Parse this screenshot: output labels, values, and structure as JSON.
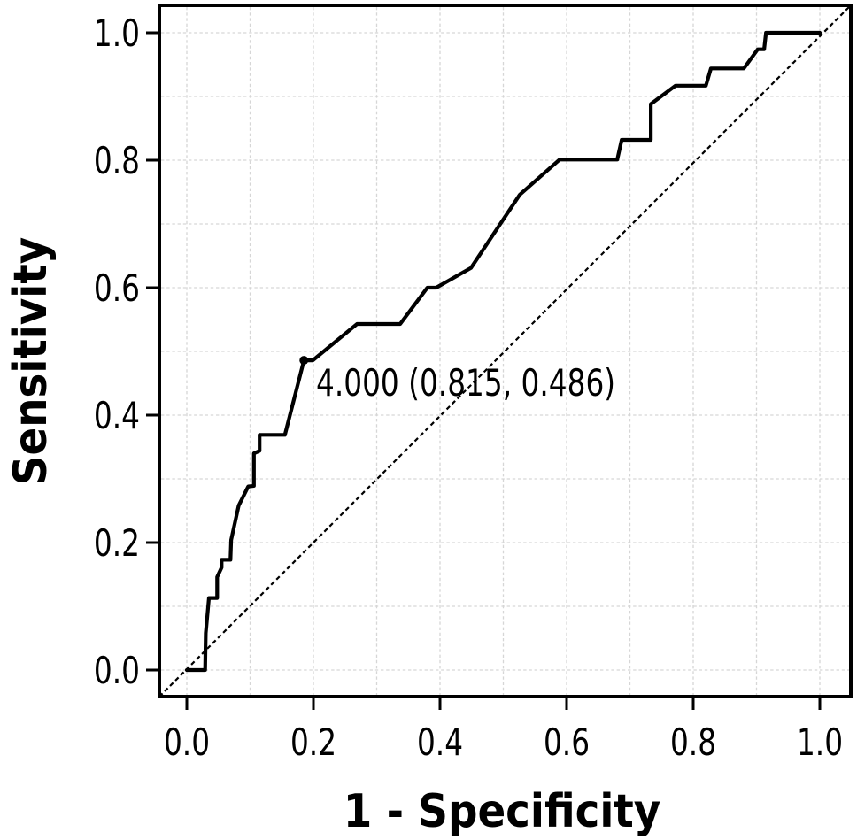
{
  "figure": {
    "background_color": "#ffffff",
    "axis_color": "#000000",
    "grid_color": "#d6d6d6",
    "curve_color": "#000000"
  },
  "chart_data": {
    "type": "line",
    "title": "",
    "xlabel": "1 - Specificity",
    "ylabel": "Sensitivity",
    "xlim": [
      -0.0434,
      1.049
    ],
    "ylim": [
      -0.0417,
      1.0431
    ],
    "grid": {
      "on": true,
      "step": 0.1,
      "style": "dotted"
    },
    "legend": {
      "shown": false
    },
    "x_ticks": [
      0.0,
      0.2,
      0.4,
      0.6,
      0.8,
      1.0
    ],
    "x_ticklabels": [
      "0.0",
      "0.2",
      "0.4",
      "0.6",
      "0.8",
      "1.0"
    ],
    "y_ticks": [
      0.0,
      0.2,
      0.4,
      0.6,
      0.8,
      1.0
    ],
    "y_ticklabels": [
      "0.0",
      "0.2",
      "0.4",
      "0.6",
      "0.8",
      "1.0"
    ],
    "series": [
      {
        "name": "ROC curve",
        "style": "solid",
        "color": "#000000",
        "points": [
          [
            0.0,
            0.0
          ],
          [
            0.029,
            0.0
          ],
          [
            0.03,
            0.058
          ],
          [
            0.035,
            0.113
          ],
          [
            0.048,
            0.113
          ],
          [
            0.048,
            0.146
          ],
          [
            0.055,
            0.161
          ],
          [
            0.055,
            0.173
          ],
          [
            0.069,
            0.173
          ],
          [
            0.07,
            0.204
          ],
          [
            0.082,
            0.258
          ],
          [
            0.097,
            0.288
          ],
          [
            0.106,
            0.289
          ],
          [
            0.106,
            0.34
          ],
          [
            0.115,
            0.344
          ],
          [
            0.115,
            0.369
          ],
          [
            0.155,
            0.369
          ],
          [
            0.185,
            0.486
          ],
          [
            0.199,
            0.486
          ],
          [
            0.269,
            0.543
          ],
          [
            0.337,
            0.543
          ],
          [
            0.38,
            0.6
          ],
          [
            0.394,
            0.6
          ],
          [
            0.449,
            0.631
          ],
          [
            0.526,
            0.746
          ],
          [
            0.589,
            0.801
          ],
          [
            0.68,
            0.801
          ],
          [
            0.687,
            0.832
          ],
          [
            0.733,
            0.832
          ],
          [
            0.733,
            0.888
          ],
          [
            0.772,
            0.917
          ],
          [
            0.82,
            0.917
          ],
          [
            0.828,
            0.944
          ],
          [
            0.88,
            0.944
          ],
          [
            0.902,
            0.974
          ],
          [
            0.912,
            0.974
          ],
          [
            0.915,
            1.0
          ],
          [
            1.0,
            1.0
          ]
        ]
      },
      {
        "name": "reference diagonal",
        "style": "dashed",
        "color": "#000000",
        "points": [
          [
            -0.0434,
            -0.0417
          ],
          [
            1.049,
            1.0431
          ]
        ]
      }
    ],
    "marked_point": {
      "x": 0.185,
      "y": 0.486,
      "cutoff": "4.000",
      "specificity": 0.815,
      "sensitivity": 0.486,
      "label": "4.000 (0.815, 0.486)"
    }
  }
}
